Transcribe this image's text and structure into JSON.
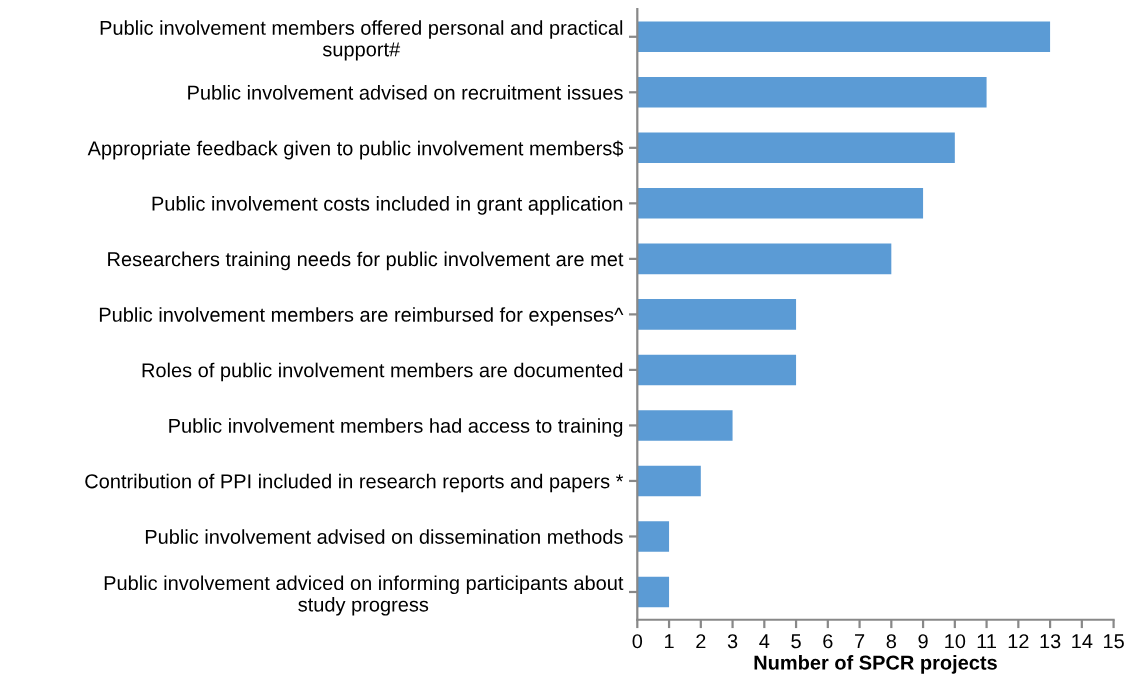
{
  "chart_data": {
    "type": "bar",
    "orientation": "horizontal",
    "xlabel": "Number of SPCR projects",
    "categories": [
      "Public involvement members offered personal and practical\nsupport#",
      "Public involvement advised on recruitment issues",
      "Appropriate feedback given to public involvement members$",
      "Public involvement costs included in grant application",
      "Researchers training needs for public involvement are met",
      "Public involvement members are reimbursed for expenses^",
      "Roles of public involvement members are documented",
      "Public involvement members had access to training",
      "Contribution of PPI included in research reports and papers *",
      "Public involvement advised on dissemination methods",
      "Public involvement adviced on informing participants about\nstudy progress"
    ],
    "values": [
      13,
      11,
      10,
      9,
      8,
      5,
      5,
      3,
      2,
      1,
      1
    ],
    "color": "#5b9bd5",
    "xlim": [
      0,
      15
    ],
    "xticks": [
      0,
      1,
      2,
      3,
      4,
      5,
      6,
      7,
      8,
      9,
      10,
      11,
      12,
      13,
      14,
      15
    ],
    "grid": false,
    "legend": false
  }
}
